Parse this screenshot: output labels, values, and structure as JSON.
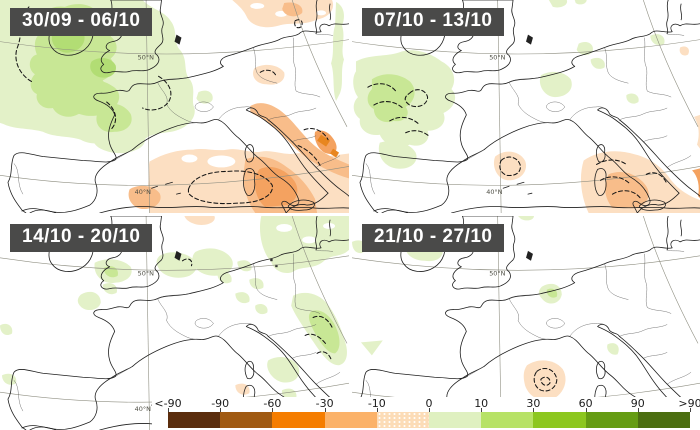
{
  "panels": [
    {
      "label": "30/09 - 06/10"
    },
    {
      "label": "07/10 - 13/10"
    },
    {
      "label": "14/10 - 20/10"
    },
    {
      "label": "21/10 - 27/10"
    }
  ],
  "map": {
    "lat50": "50°N",
    "lat40": "40°N"
  },
  "colorbar": {
    "labels": [
      "<-90",
      "-90",
      "-60",
      "-30",
      "-10",
      "0",
      "10",
      "30",
      "60",
      "90",
      ">90"
    ],
    "segment_colors": [
      "#5b2d0d",
      "#a05a12",
      "#f57d00",
      "#fbb269",
      "#fcdcb7",
      "#dff0c0",
      "#b7e266",
      "#8cc71f",
      "#659c13",
      "#4b6e10"
    ],
    "dotted_segment_index": 4,
    "map_fills": {
      "pale_green": "#e3f1c8",
      "mid_green": "#c8e795",
      "deep_green": "#b2dd74",
      "pale_orange": "#fcdfc2",
      "mid_orange": "#f8bd8a",
      "strong_orange": "#f4a260",
      "dark_orange": "#e8861f"
    }
  }
}
